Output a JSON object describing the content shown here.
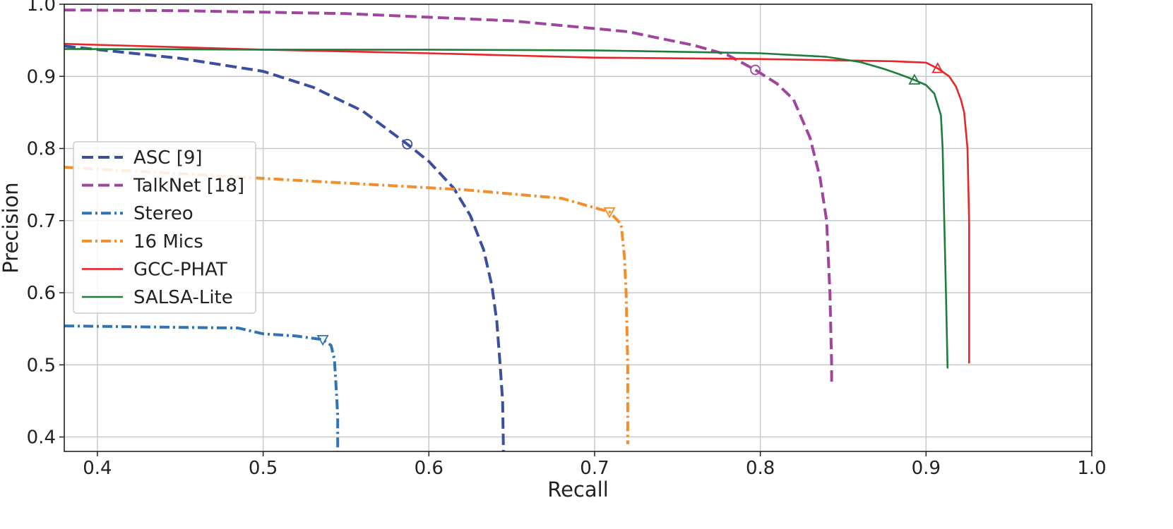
{
  "chart_data": {
    "type": "line",
    "title": "",
    "xlabel": "Recall",
    "ylabel": "Precision",
    "xlim": [
      0.38,
      1.0
    ],
    "ylim": [
      0.38,
      1.0
    ],
    "grid": true,
    "legend_position": "center-left",
    "x_ticks": [
      "0.4",
      "0.5",
      "0.6",
      "0.7",
      "0.8",
      "0.9",
      "1.0"
    ],
    "y_ticks": [
      "0.4",
      "0.5",
      "0.6",
      "0.7",
      "0.8",
      "0.9",
      "1.0"
    ],
    "series": [
      {
        "name": "ASC [9]",
        "color": "#3b4fa0",
        "dash": "dashed",
        "marker": "circle",
        "marker_point": [
          0.587,
          0.806
        ],
        "points": [
          [
            0.38,
            0.942
          ],
          [
            0.45,
            0.925
          ],
          [
            0.5,
            0.907
          ],
          [
            0.53,
            0.885
          ],
          [
            0.56,
            0.852
          ],
          [
            0.587,
            0.806
          ],
          [
            0.6,
            0.782
          ],
          [
            0.615,
            0.745
          ],
          [
            0.625,
            0.707
          ],
          [
            0.633,
            0.66
          ],
          [
            0.638,
            0.61
          ],
          [
            0.641,
            0.56
          ],
          [
            0.643,
            0.5
          ],
          [
            0.6445,
            0.45
          ],
          [
            0.645,
            0.38
          ]
        ]
      },
      {
        "name": "TalkNet [18]",
        "color": "#a0459e",
        "dash": "dashed",
        "marker": "circle",
        "marker_point": [
          0.797,
          0.909
        ],
        "points": [
          [
            0.38,
            0.992
          ],
          [
            0.45,
            0.991
          ],
          [
            0.55,
            0.987
          ],
          [
            0.65,
            0.977
          ],
          [
            0.72,
            0.962
          ],
          [
            0.76,
            0.943
          ],
          [
            0.78,
            0.93
          ],
          [
            0.797,
            0.909
          ],
          [
            0.81,
            0.89
          ],
          [
            0.82,
            0.868
          ],
          [
            0.83,
            0.815
          ],
          [
            0.836,
            0.76
          ],
          [
            0.84,
            0.7
          ],
          [
            0.842,
            0.6
          ],
          [
            0.843,
            0.5
          ],
          [
            0.843,
            0.473
          ]
        ]
      },
      {
        "name": "Stereo",
        "color": "#2f74b5",
        "dash": "dashdot",
        "marker": "triangle-down",
        "marker_point": [
          0.536,
          0.535
        ],
        "points": [
          [
            0.38,
            0.554
          ],
          [
            0.45,
            0.552
          ],
          [
            0.485,
            0.551
          ],
          [
            0.5,
            0.543
          ],
          [
            0.52,
            0.54
          ],
          [
            0.536,
            0.535
          ],
          [
            0.541,
            0.527
          ],
          [
            0.543,
            0.508
          ],
          [
            0.544,
            0.47
          ],
          [
            0.545,
            0.43
          ],
          [
            0.545,
            0.38
          ]
        ]
      },
      {
        "name": "16 Mics",
        "color": "#f28e2b",
        "dash": "dashdot",
        "marker": "triangle-down",
        "marker_point": [
          0.709,
          0.712
        ],
        "points": [
          [
            0.38,
            0.774
          ],
          [
            0.45,
            0.765
          ],
          [
            0.55,
            0.752
          ],
          [
            0.62,
            0.743
          ],
          [
            0.68,
            0.731
          ],
          [
            0.709,
            0.712
          ],
          [
            0.716,
            0.695
          ],
          [
            0.718,
            0.65
          ],
          [
            0.719,
            0.6
          ],
          [
            0.72,
            0.5
          ],
          [
            0.72,
            0.39
          ]
        ]
      },
      {
        "name": "GCC-PHAT",
        "color": "#e8262a",
        "dash": "solid",
        "marker": "triangle-up",
        "marker_point": [
          0.907,
          0.911
        ],
        "points": [
          [
            0.38,
            0.945
          ],
          [
            0.5,
            0.937
          ],
          [
            0.6,
            0.932
          ],
          [
            0.7,
            0.926
          ],
          [
            0.8,
            0.924
          ],
          [
            0.88,
            0.921
          ],
          [
            0.9,
            0.919
          ],
          [
            0.907,
            0.911
          ],
          [
            0.914,
            0.9
          ],
          [
            0.918,
            0.886
          ],
          [
            0.921,
            0.868
          ],
          [
            0.923,
            0.85
          ],
          [
            0.925,
            0.8
          ],
          [
            0.926,
            0.7
          ],
          [
            0.926,
            0.6
          ],
          [
            0.926,
            0.502
          ]
        ]
      },
      {
        "name": "SALSA-Lite",
        "color": "#1e7d3c",
        "dash": "solid",
        "marker": "triangle-up",
        "marker_point": [
          0.893,
          0.895
        ],
        "points": [
          [
            0.38,
            0.938
          ],
          [
            0.5,
            0.937
          ],
          [
            0.6,
            0.937
          ],
          [
            0.7,
            0.936
          ],
          [
            0.8,
            0.932
          ],
          [
            0.84,
            0.927
          ],
          [
            0.86,
            0.92
          ],
          [
            0.875,
            0.91
          ],
          [
            0.885,
            0.902
          ],
          [
            0.893,
            0.895
          ],
          [
            0.9,
            0.888
          ],
          [
            0.905,
            0.876
          ],
          [
            0.909,
            0.846
          ],
          [
            0.91,
            0.8
          ],
          [
            0.911,
            0.7
          ],
          [
            0.912,
            0.6
          ],
          [
            0.913,
            0.495
          ]
        ]
      }
    ]
  }
}
